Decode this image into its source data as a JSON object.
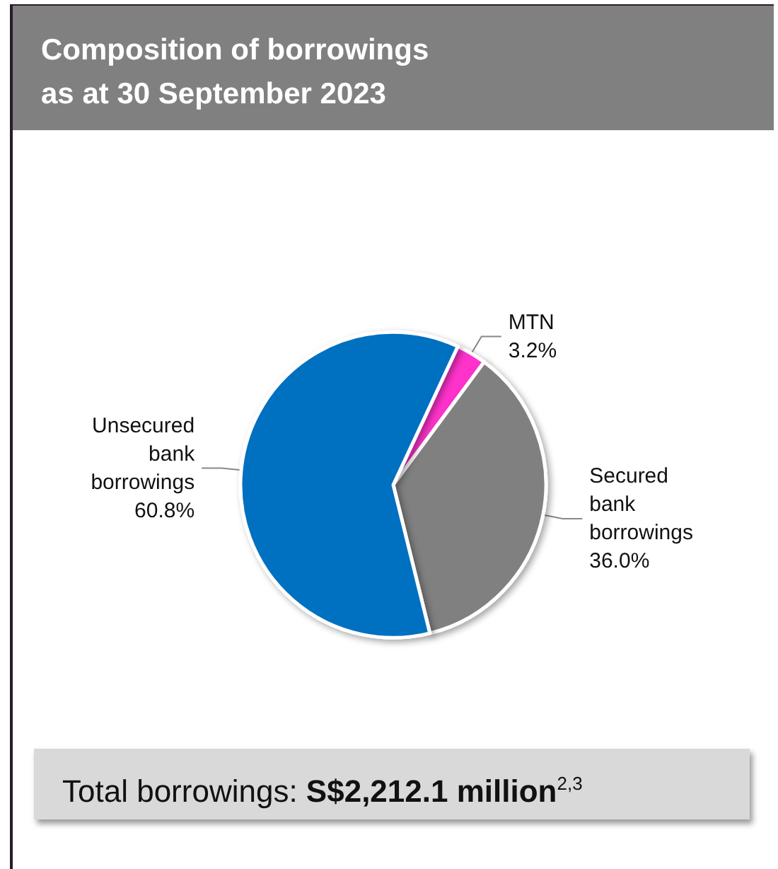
{
  "chart_data": {
    "type": "pie",
    "title": "Composition of borrowings as at 30 September 2023",
    "categories": [
      "MTN",
      "Secured bank borrowings",
      "Unsecured bank borrowings"
    ],
    "values": [
      3.2,
      36.0,
      60.8
    ],
    "value_labels": [
      "3.2%",
      "36.0%",
      "60.8%"
    ],
    "colors": [
      "#ff33cc",
      "#808080",
      "#0070c0"
    ],
    "annotations": [
      "Total borrowings: S$2,212.1 million$^{2,3}$"
    ],
    "legend": false
  }
}
